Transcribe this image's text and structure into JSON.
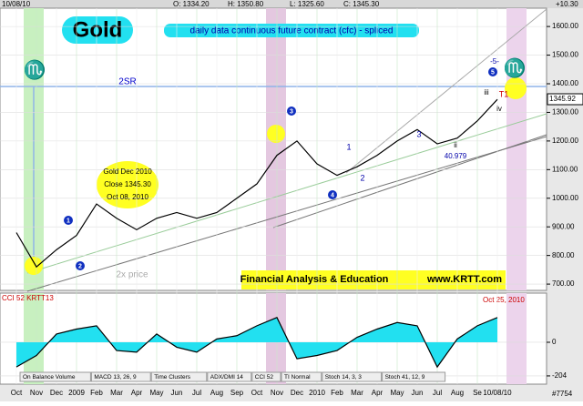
{
  "chart_data": [
    {
      "type": "line",
      "title": "Gold",
      "subtitle": "daily data  continuous  future contract (cfc) - spliced",
      "header": {
        "date": "10/08/10",
        "open": "O: 1334.20",
        "high": "H: 1350.80",
        "low": "L: 1325.60",
        "close": "C: 1345.30",
        "change": "+10.30"
      },
      "categories": [
        "Oct",
        "Nov",
        "Dec",
        "2009",
        "Feb",
        "Mar",
        "Apr",
        "May",
        "Jun",
        "Jul",
        "Aug",
        "Sep",
        "Oct",
        "Nov",
        "Dec",
        "2010",
        "Feb",
        "Mar",
        "Apr",
        "May",
        "Jun",
        "Jul",
        "Aug",
        "Se",
        "10/08/10"
      ],
      "series": [
        {
          "name": "Gold",
          "color": "#000000",
          "values": [
            880,
            760,
            820,
            870,
            980,
            930,
            890,
            930,
            950,
            930,
            950,
            1000,
            1050,
            1150,
            1200,
            1120,
            1080,
            1110,
            1150,
            1200,
            1240,
            1190,
            1210,
            1270,
            1345.3
          ]
        }
      ],
      "price_marker": 1345.92,
      "ylim": [
        678,
        1664
      ],
      "yticks": [
        {
          "value": 700,
          "label": "700.00"
        },
        {
          "value": 800,
          "label": "800.00"
        },
        {
          "value": 900,
          "label": "900.00"
        },
        {
          "value": 1000,
          "label": "1000.00"
        },
        {
          "value": 1100,
          "label": "1100.00"
        },
        {
          "value": 1200,
          "label": "1200.00"
        },
        {
          "value": 1300,
          "label": "1300.00"
        },
        {
          "value": 1400,
          "label": "1400.00"
        },
        {
          "value": 1500,
          "label": "1500.00"
        },
        {
          "value": 1600,
          "label": "1600.00"
        }
      ],
      "grid": true,
      "annotations": [
        "2SR",
        "Gold Dec 2010",
        "Close 1345.30",
        "Oct 08, 2010",
        "2x price",
        "Financial Analysis & Education",
        "www.KRTT.com",
        "3",
        "1",
        "2",
        "40.979",
        "iii",
        "iv",
        "ii",
        "T1",
        "-5-",
        "♏",
        "♏"
      ],
      "wave_labels": [
        "1",
        "2",
        "3",
        "4",
        "5"
      ]
    },
    {
      "type": "line",
      "title": "CCI 52  KRTT13",
      "annotation": "Oct 25, 2010",
      "series": [
        {
          "name": "CCI 52",
          "color": "#000000",
          "values": [
            -150,
            -80,
            50,
            80,
            100,
            -50,
            -60,
            50,
            -30,
            -60,
            20,
            40,
            100,
            150,
            -100,
            -80,
            -50,
            30,
            80,
            120,
            100,
            -150,
            20,
            100,
            150
          ]
        }
      ],
      "ylim": [
        -254,
        298
      ],
      "yticks": [
        0,
        -204
      ],
      "tabs": [
        "On Balance Volume",
        "MACD 13, 26, 9",
        "Time Clusters",
        "ADX/DMI 14",
        "CCI 52",
        "TI Normal",
        "Stoch 14, 3, 3",
        "Stoch 41, 12, 9"
      ],
      "footer": "#7754"
    }
  ]
}
